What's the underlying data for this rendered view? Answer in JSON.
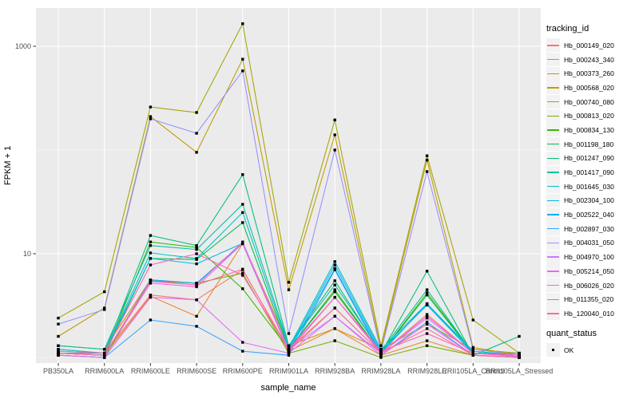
{
  "figure": {
    "background": "#FFFFFF",
    "panel_background": "#EBEBEB",
    "grid_color": "#FFFFFF",
    "tick_text_color": "#4D4D4D",
    "point_color": "#000000"
  },
  "chart_data": {
    "type": "line",
    "title": "",
    "xlabel": "sample_name",
    "ylabel": "FPKM + 1",
    "y_scale": "log10",
    "ylim": [
      1,
      2300
    ],
    "y_major_ticks": [
      10,
      1000
    ],
    "y_tick_labels": [
      "10",
      "1000"
    ],
    "y_minor_ticks": [
      1,
      100
    ],
    "grid": true,
    "legend_position": "right",
    "categories": [
      "PB350LA",
      "RRIM600LA",
      "RRIM600LE",
      "RRIM600SE",
      "RRIM600PE",
      "RRIM901LA",
      "RRIM928BA",
      "RRIM928LA",
      "RRIM928LE",
      "RRII105LA_Control",
      "RRII105LA_Stressed"
    ],
    "series": [
      {
        "name": "Hb_000149_020",
        "color": "#F8766D",
        "values": [
          1.2,
          1.1,
          4.0,
          3.6,
          7.0,
          1.2,
          3.0,
          1.1,
          2.6,
          1.1,
          1.05
        ]
      },
      {
        "name": "Hb_000243_340",
        "color": "#EA8331",
        "values": [
          1.1,
          1.05,
          3.9,
          2.5,
          12.5,
          1.15,
          1.9,
          1.05,
          1.45,
          1.05,
          1.0
        ]
      },
      {
        "name": "Hb_000373_260",
        "color": "#D89000",
        "values": [
          1.3,
          1.2,
          5.6,
          5.2,
          12.8,
          1.3,
          1.9,
          1.2,
          2.1,
          1.2,
          1.1
        ]
      },
      {
        "name": "Hb_000568_020",
        "color": "#C09B00",
        "values": [
          1.6,
          3.0,
          210,
          95,
          750,
          4.5,
          140,
          1.2,
          80,
          1.25,
          1.05
        ]
      },
      {
        "name": "Hb_000740_080",
        "color": "#A3A500",
        "values": [
          2.4,
          4.3,
          260,
          230,
          1650,
          5.3,
          195,
          1.3,
          88,
          2.3,
          1.1
        ]
      },
      {
        "name": "Hb_000813_020",
        "color": "#7CAE00",
        "values": [
          1.05,
          1.0,
          5.5,
          5.2,
          6.5,
          1.1,
          1.45,
          1.0,
          1.3,
          1.05,
          1.0
        ]
      },
      {
        "name": "Hb_000834_130",
        "color": "#39B600",
        "values": [
          1.1,
          1.05,
          13,
          11.5,
          4.6,
          1.2,
          4.5,
          1.1,
          4.2,
          1.1,
          1.05
        ]
      },
      {
        "name": "Hb_001198_180",
        "color": "#00BB4E",
        "values": [
          1.1,
          1.05,
          9.0,
          8.8,
          20,
          1.2,
          4.3,
          1.1,
          4.0,
          1.1,
          1.05
        ]
      },
      {
        "name": "Hb_001247_090",
        "color": "#00BF7D",
        "values": [
          1.1,
          1.1,
          15,
          12,
          58,
          1.3,
          5.5,
          1.1,
          6.8,
          1.05,
          1.6
        ]
      },
      {
        "name": "Hb_001417_090",
        "color": "#00C1A3",
        "values": [
          1.3,
          1.2,
          12,
          11,
          30,
          1.3,
          5.0,
          1.15,
          4.5,
          1.1,
          1.1
        ]
      },
      {
        "name": "Hb_001645_030",
        "color": "#00BFC4",
        "values": [
          1.2,
          1.1,
          10.2,
          9.0,
          25,
          1.25,
          8.4,
          1.2,
          3.3,
          1.15,
          1.05
        ]
      },
      {
        "name": "Hb_002304_100",
        "color": "#00BAE0",
        "values": [
          1.15,
          1.1,
          9.0,
          8.0,
          12.6,
          1.2,
          7.8,
          1.15,
          3.2,
          1.1,
          1.05
        ]
      },
      {
        "name": "Hb_002522_040",
        "color": "#00B0F6",
        "values": [
          1.1,
          1.05,
          5.6,
          5.2,
          12.5,
          1.15,
          7.2,
          1.1,
          3.3,
          1.1,
          1.02
        ]
      },
      {
        "name": "Hb_002897_030",
        "color": "#35A2FF",
        "values": [
          1.05,
          1.0,
          2.3,
          2.0,
          1.15,
          1.05,
          7.0,
          1.05,
          2.2,
          1.05,
          1.0
        ]
      },
      {
        "name": "Hb_004031_050",
        "color": "#9590FF",
        "values": [
          2.1,
          2.9,
          200,
          145,
          580,
          1.7,
          100,
          1.15,
          62,
          1.2,
          1.05
        ]
      },
      {
        "name": "Hb_004970_100",
        "color": "#C77CFF",
        "values": [
          1.1,
          1.05,
          5.4,
          5.0,
          13,
          1.2,
          2.5,
          1.1,
          2.4,
          1.1,
          1.02
        ]
      },
      {
        "name": "Hb_005214_050",
        "color": "#E76BF3",
        "values": [
          1.05,
          1.0,
          3.8,
          3.6,
          1.4,
          1.1,
          2.5,
          1.05,
          2.1,
          1.05,
          1.0
        ]
      },
      {
        "name": "Hb_006026_020",
        "color": "#FA62DB",
        "values": [
          1.1,
          1.05,
          5.2,
          4.8,
          12.6,
          1.15,
          3.8,
          1.1,
          2.5,
          1.1,
          1.02
        ]
      },
      {
        "name": "Hb_011355_020",
        "color": "#FF62BC",
        "values": [
          1.15,
          1.1,
          7.8,
          10,
          6.2,
          1.2,
          3.8,
          1.15,
          1.7,
          1.1,
          1.05
        ]
      },
      {
        "name": "Hb_120040_010",
        "color": "#FF6A98",
        "values": [
          1.1,
          1.05,
          5.5,
          5.0,
          7.1,
          1.15,
          3.0,
          1.1,
          1.9,
          1.05,
          1.0
        ]
      }
    ],
    "legend": {
      "color_title": "tracking_id",
      "shape_title": "quant_status",
      "shape_items": [
        {
          "label": "OK",
          "marker": "black-square"
        }
      ]
    }
  }
}
